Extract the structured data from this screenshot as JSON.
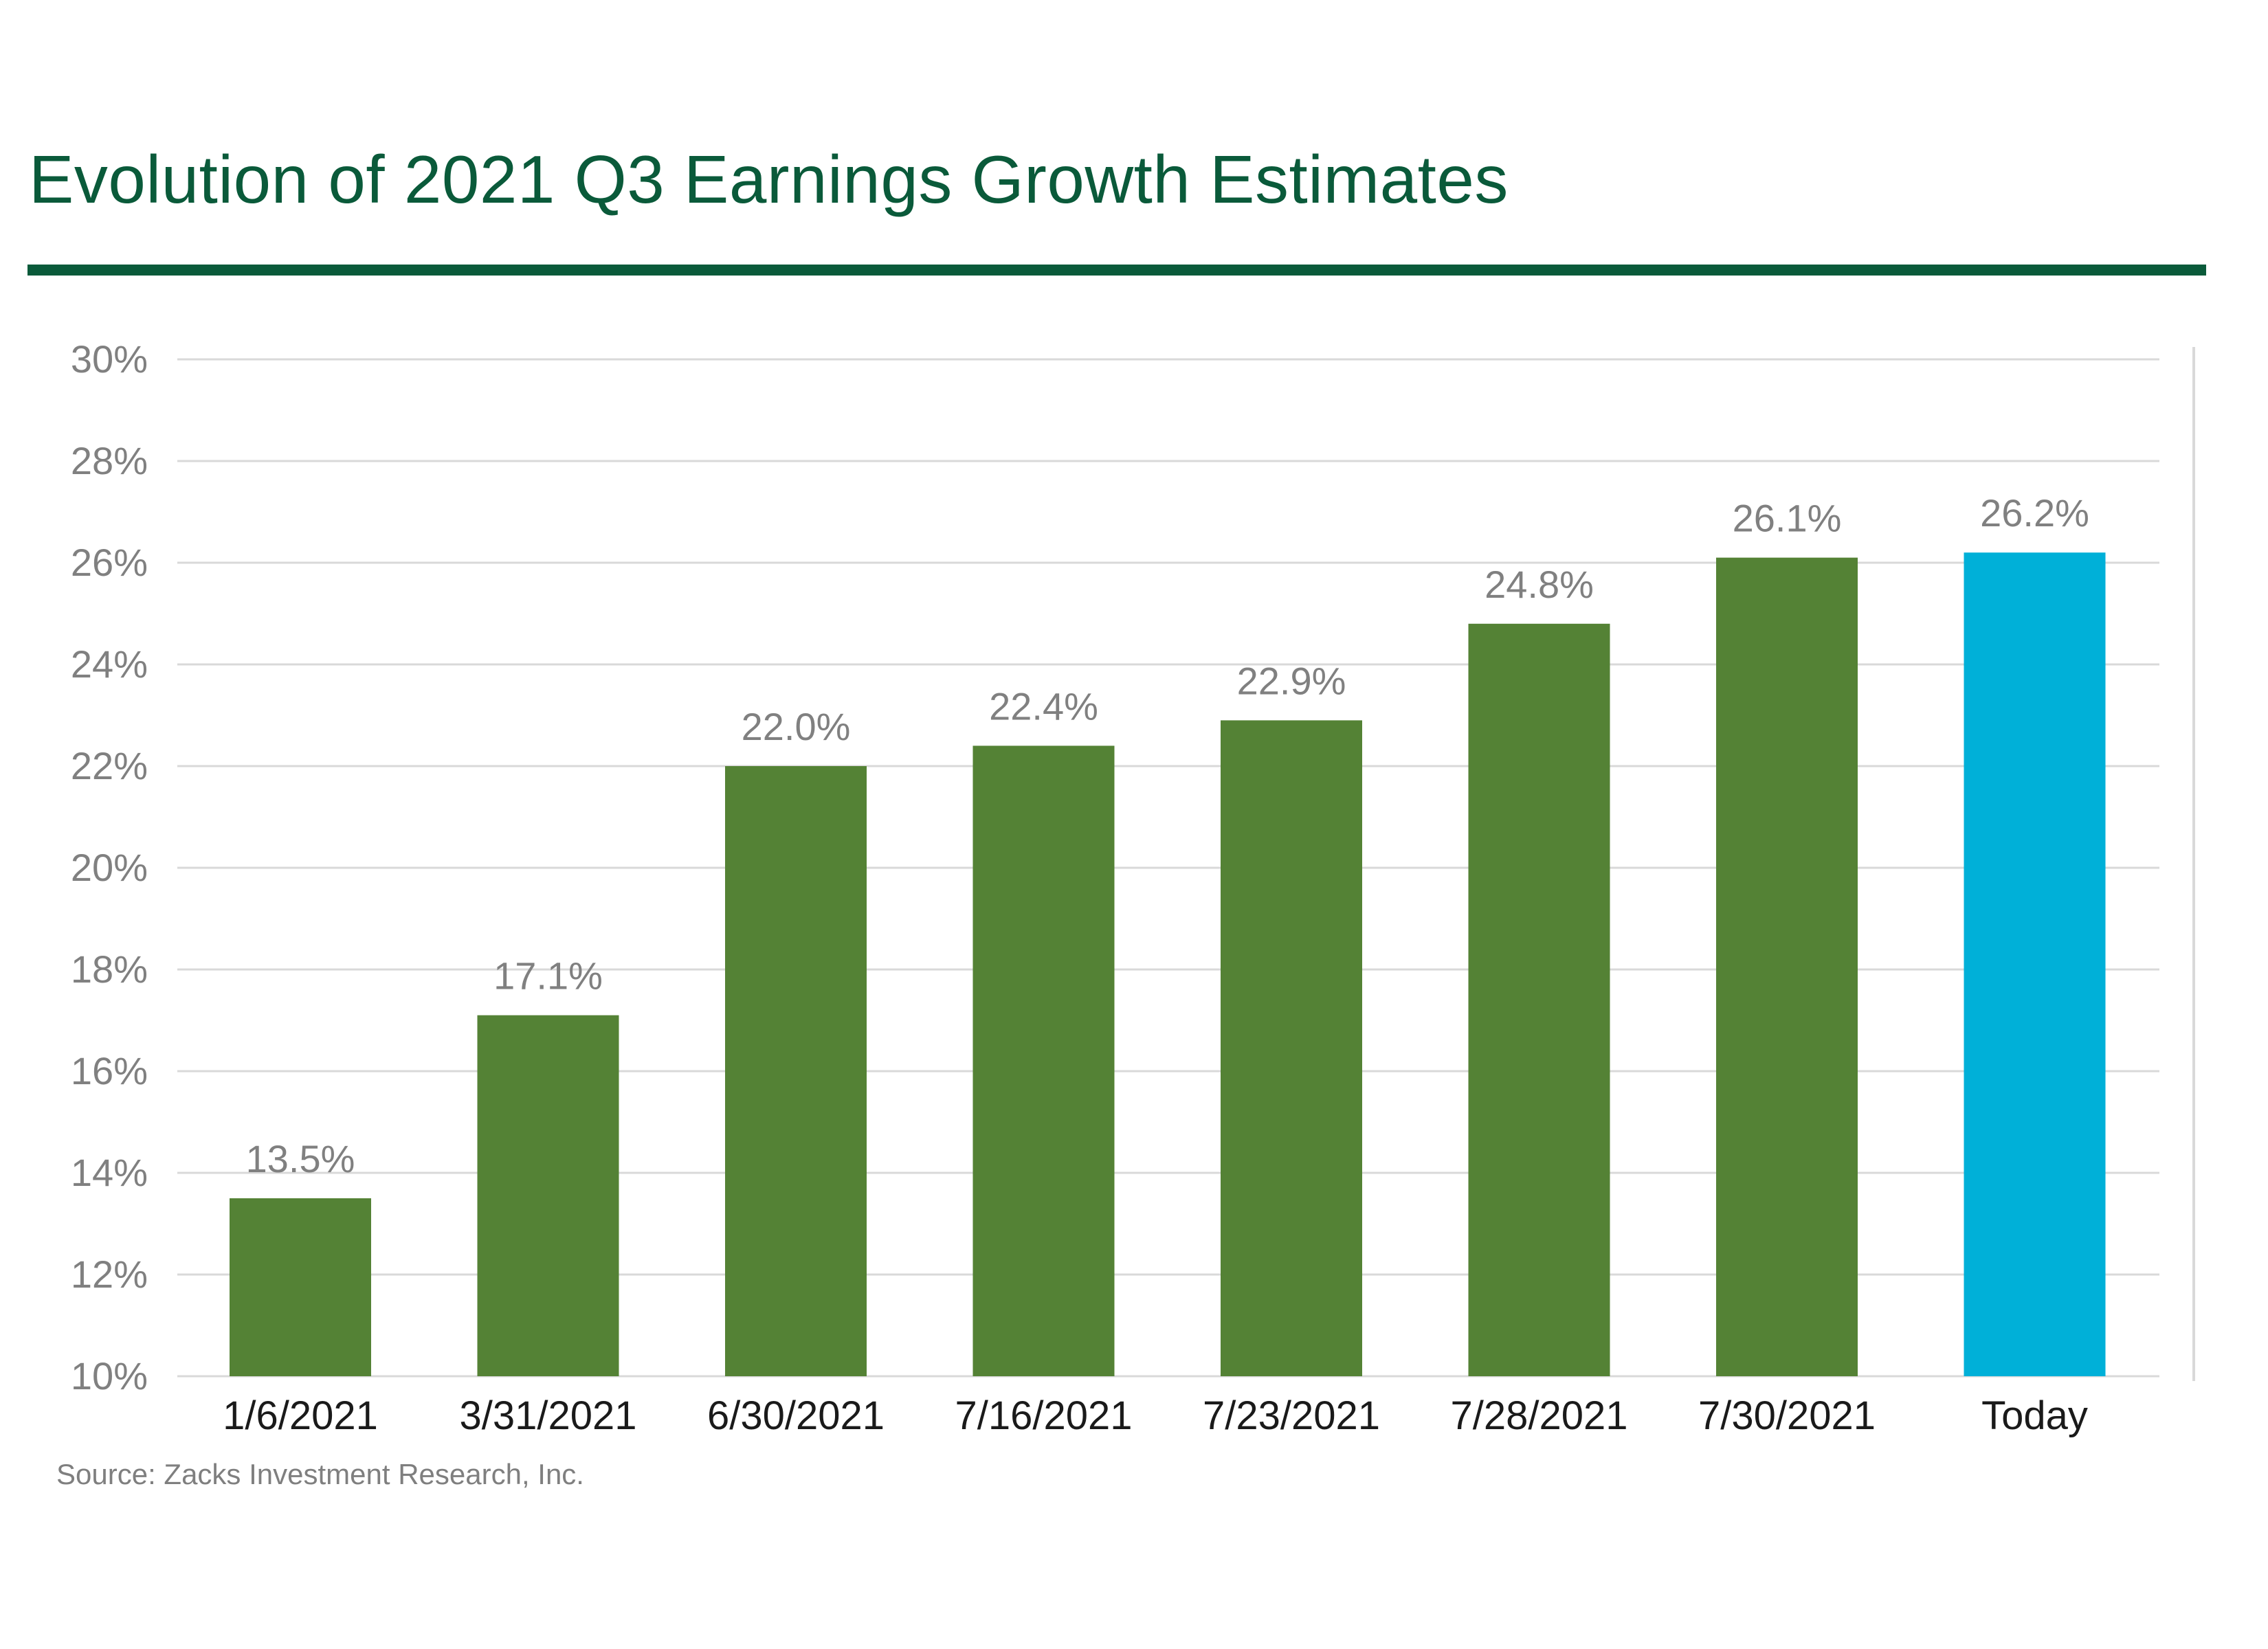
{
  "header": {
    "title": "Evolution of 2021 Q3 Earnings Growth Estimates"
  },
  "footer": {
    "source": "Source: Zacks Investment Research, Inc."
  },
  "colors": {
    "title": "#0a5a3a",
    "bar_default": "#548235",
    "bar_highlight": "#00b0d8",
    "axis_text": "#808080",
    "category_text": "#1a1a1a",
    "gridline": "#d9d9d9"
  },
  "chart_data": {
    "type": "bar",
    "title": "Evolution of 2021 Q3 Earnings Growth Estimates",
    "xlabel": "",
    "ylabel": "",
    "categories": [
      "1/6/2021",
      "3/31/2021",
      "6/30/2021",
      "7/16/2021",
      "7/23/2021",
      "7/28/2021",
      "7/30/2021",
      "Today"
    ],
    "values": [
      13.5,
      17.1,
      22.0,
      22.4,
      22.9,
      24.8,
      26.1,
      26.2
    ],
    "value_labels": [
      "13.5%",
      "17.1%",
      "22.0%",
      "22.4%",
      "22.9%",
      "24.8%",
      "26.1%",
      "26.2%"
    ],
    "highlight_index": 7,
    "ylim": [
      10,
      30
    ],
    "yticks": [
      10,
      12,
      14,
      16,
      18,
      20,
      22,
      24,
      26,
      28,
      30
    ],
    "ytick_labels": [
      "10%",
      "12%",
      "14%",
      "16%",
      "18%",
      "20%",
      "22%",
      "24%",
      "26%",
      "28%",
      "30%"
    ],
    "grid": true,
    "legend": "none"
  }
}
